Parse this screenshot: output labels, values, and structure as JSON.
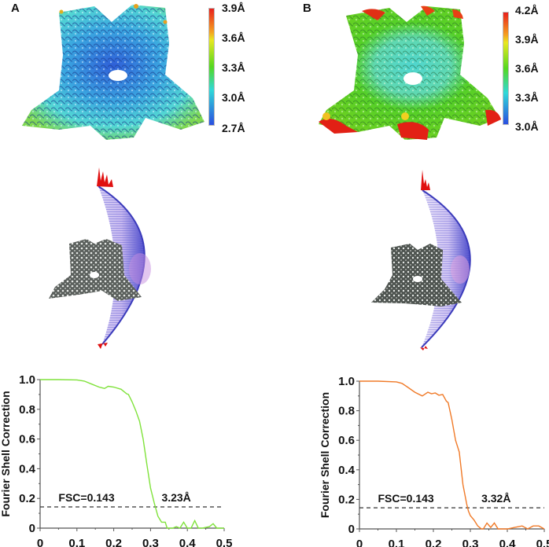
{
  "panels": [
    {
      "label": "A",
      "local_resolution": {
        "colorbar_ticks": [
          "3.9Å",
          "3.6Å",
          "3.3Å",
          "3.0Å",
          "2.7Å"
        ],
        "colorbar_gradient": [
          "#e8201c",
          "#f5a020",
          "#e8e820",
          "#55d820",
          "#30d8d8",
          "#2a4ee0"
        ]
      },
      "angular_distribution": {
        "structure_color": "#6e6e6e",
        "shell_color": "#5a5ad0",
        "peak_color": "#e01010"
      },
      "fsc": {
        "ylabel": "Fourier Shell Correction",
        "threshold_label": "FSC=0.143",
        "resolution_label": "3.23Å",
        "curve_color": "#7fe23a"
      }
    },
    {
      "label": "B",
      "local_resolution": {
        "colorbar_ticks": [
          "4.2Å",
          "3.9Å",
          "3.6Å",
          "3.3Å",
          "3.0Å"
        ],
        "colorbar_gradient": [
          "#e8201c",
          "#f5a020",
          "#e8e820",
          "#55d820",
          "#30d8d8",
          "#2a4ee0"
        ]
      },
      "angular_distribution": {
        "structure_color": "#6e6e6e",
        "shell_color": "#5a5ad0",
        "peak_color": "#e01010"
      },
      "fsc": {
        "ylabel": "Fourier Shell Correction",
        "threshold_label": "FSC=0.143",
        "resolution_label": "3.32Å",
        "curve_color": "#f07a28"
      }
    }
  ],
  "chart_data": [
    {
      "type": "line",
      "title": "A",
      "xlabel": "",
      "ylabel": "Fourier Shell Correction",
      "xlim": [
        0,
        0.5
      ],
      "ylim": [
        0,
        1.0
      ],
      "x_ticks": [
        "0",
        "0.1",
        "0.2",
        "0.3",
        "0.4",
        "0.5"
      ],
      "y_ticks": [
        "0",
        "0.2",
        "0.4",
        "0.6",
        "0.8",
        "1.0"
      ],
      "threshold": {
        "y": 0.143,
        "style": "dashed",
        "label": "FSC=0.143"
      },
      "annotation": "3.23Å",
      "series": [
        {
          "name": "FSC",
          "color": "#7fe23a",
          "x": [
            0,
            0.05,
            0.1,
            0.12,
            0.14,
            0.16,
            0.175,
            0.185,
            0.2,
            0.22,
            0.235,
            0.24,
            0.25,
            0.26,
            0.27,
            0.28,
            0.29,
            0.3,
            0.31,
            0.32,
            0.33,
            0.34,
            0.345,
            0.36,
            0.37,
            0.38,
            0.39,
            0.4,
            0.41,
            0.42,
            0.43,
            0.44,
            0.46,
            0.47,
            0.48,
            0.5
          ],
          "y": [
            1.0,
            1.0,
            0.998,
            0.99,
            0.97,
            0.95,
            0.94,
            0.955,
            0.95,
            0.935,
            0.905,
            0.9,
            0.85,
            0.79,
            0.72,
            0.6,
            0.43,
            0.27,
            0.17,
            0.08,
            0.04,
            0.04,
            0.0,
            0.0,
            0.01,
            0.0,
            0.04,
            0.0,
            0.0,
            0.05,
            0.0,
            0.0,
            0.01,
            0.03,
            0.0,
            0.0
          ]
        }
      ]
    },
    {
      "type": "line",
      "title": "B",
      "xlabel": "",
      "ylabel": "Fourier Shell Correction",
      "xlim": [
        0,
        0.5
      ],
      "ylim": [
        0,
        1.0
      ],
      "x_ticks": [
        "0",
        "0.1",
        "0.2",
        "0.3",
        "0.4",
        "0.5"
      ],
      "y_ticks": [
        "0",
        "0.2",
        "0.4",
        "0.6",
        "0.8",
        "1.0"
      ],
      "threshold": {
        "y": 0.143,
        "style": "dashed",
        "label": "FSC=0.143"
      },
      "annotation": "3.32Å",
      "series": [
        {
          "name": "FSC",
          "color": "#f07a28",
          "x": [
            0,
            0.05,
            0.1,
            0.115,
            0.13,
            0.15,
            0.17,
            0.185,
            0.195,
            0.205,
            0.215,
            0.225,
            0.235,
            0.24,
            0.25,
            0.26,
            0.27,
            0.28,
            0.29,
            0.295,
            0.3,
            0.31,
            0.32,
            0.33,
            0.335,
            0.345,
            0.355,
            0.365,
            0.375,
            0.385,
            0.4,
            0.42,
            0.44,
            0.455,
            0.47,
            0.485,
            0.5
          ],
          "y": [
            1.0,
            1.0,
            0.995,
            0.985,
            0.96,
            0.925,
            0.9,
            0.925,
            0.915,
            0.92,
            0.905,
            0.91,
            0.865,
            0.855,
            0.74,
            0.6,
            0.52,
            0.3,
            0.17,
            0.12,
            0.09,
            0.06,
            0.02,
            0.0,
            0.0,
            0.04,
            0.01,
            0.04,
            0.0,
            0.0,
            0.0,
            0.01,
            0.02,
            0.0,
            0.02,
            0.02,
            0.0
          ]
        }
      ]
    }
  ]
}
